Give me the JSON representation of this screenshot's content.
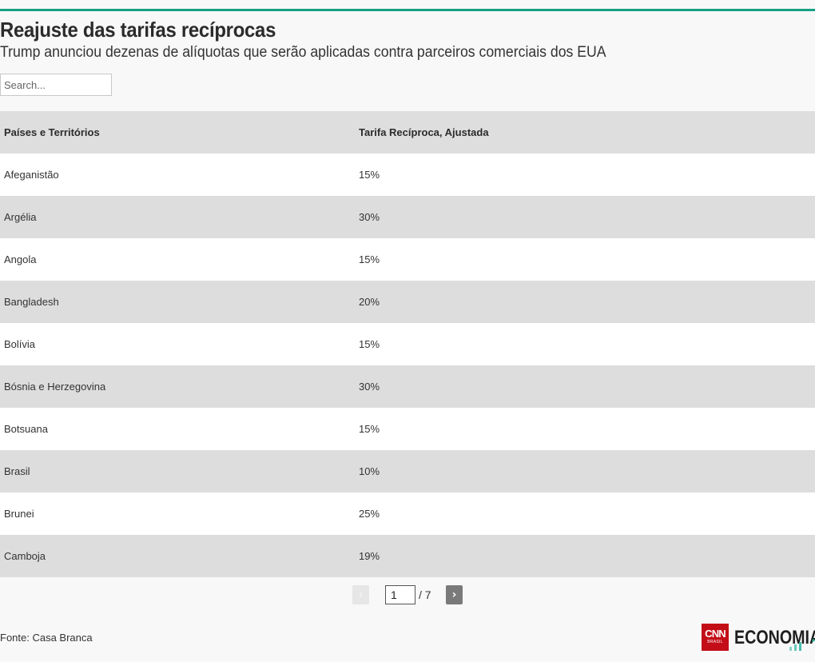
{
  "header": {
    "title": "Reajuste das tarifas recíprocas",
    "subtitle": "Trump anunciou dezenas de alíquotas que serão aplicadas contra parceiros comerciais dos EUA"
  },
  "search": {
    "placeholder": "Search..."
  },
  "table": {
    "columns": [
      "Países e Territórios",
      "Tarifa Recíproca, Ajustada"
    ],
    "rows": [
      [
        "Afeganistão",
        "15%"
      ],
      [
        "Argélia",
        "30%"
      ],
      [
        "Angola",
        "15%"
      ],
      [
        "Bangladesh",
        "20%"
      ],
      [
        "Bolívia",
        "15%"
      ],
      [
        "Bósnia e Herzegovina",
        "30%"
      ],
      [
        "Botsuana",
        "15%"
      ],
      [
        "Brasil",
        "10%"
      ],
      [
        "Brunei",
        "25%"
      ],
      [
        "Camboja",
        "19%"
      ]
    ]
  },
  "pagination": {
    "prev_label": "‹",
    "next_label": "›",
    "current_page": "1",
    "total_label": "/ 7"
  },
  "footer": {
    "source": "Fonte: Casa Branca",
    "logo_cnn": "CNN",
    "logo_brasil": "BRASIL",
    "logo_economia": "ECONOMIA"
  },
  "colors": {
    "accent_rule": "#16a083",
    "cnn_red": "#c30e17",
    "header_row": "#dedede",
    "striped_row": "#dedddd"
  }
}
